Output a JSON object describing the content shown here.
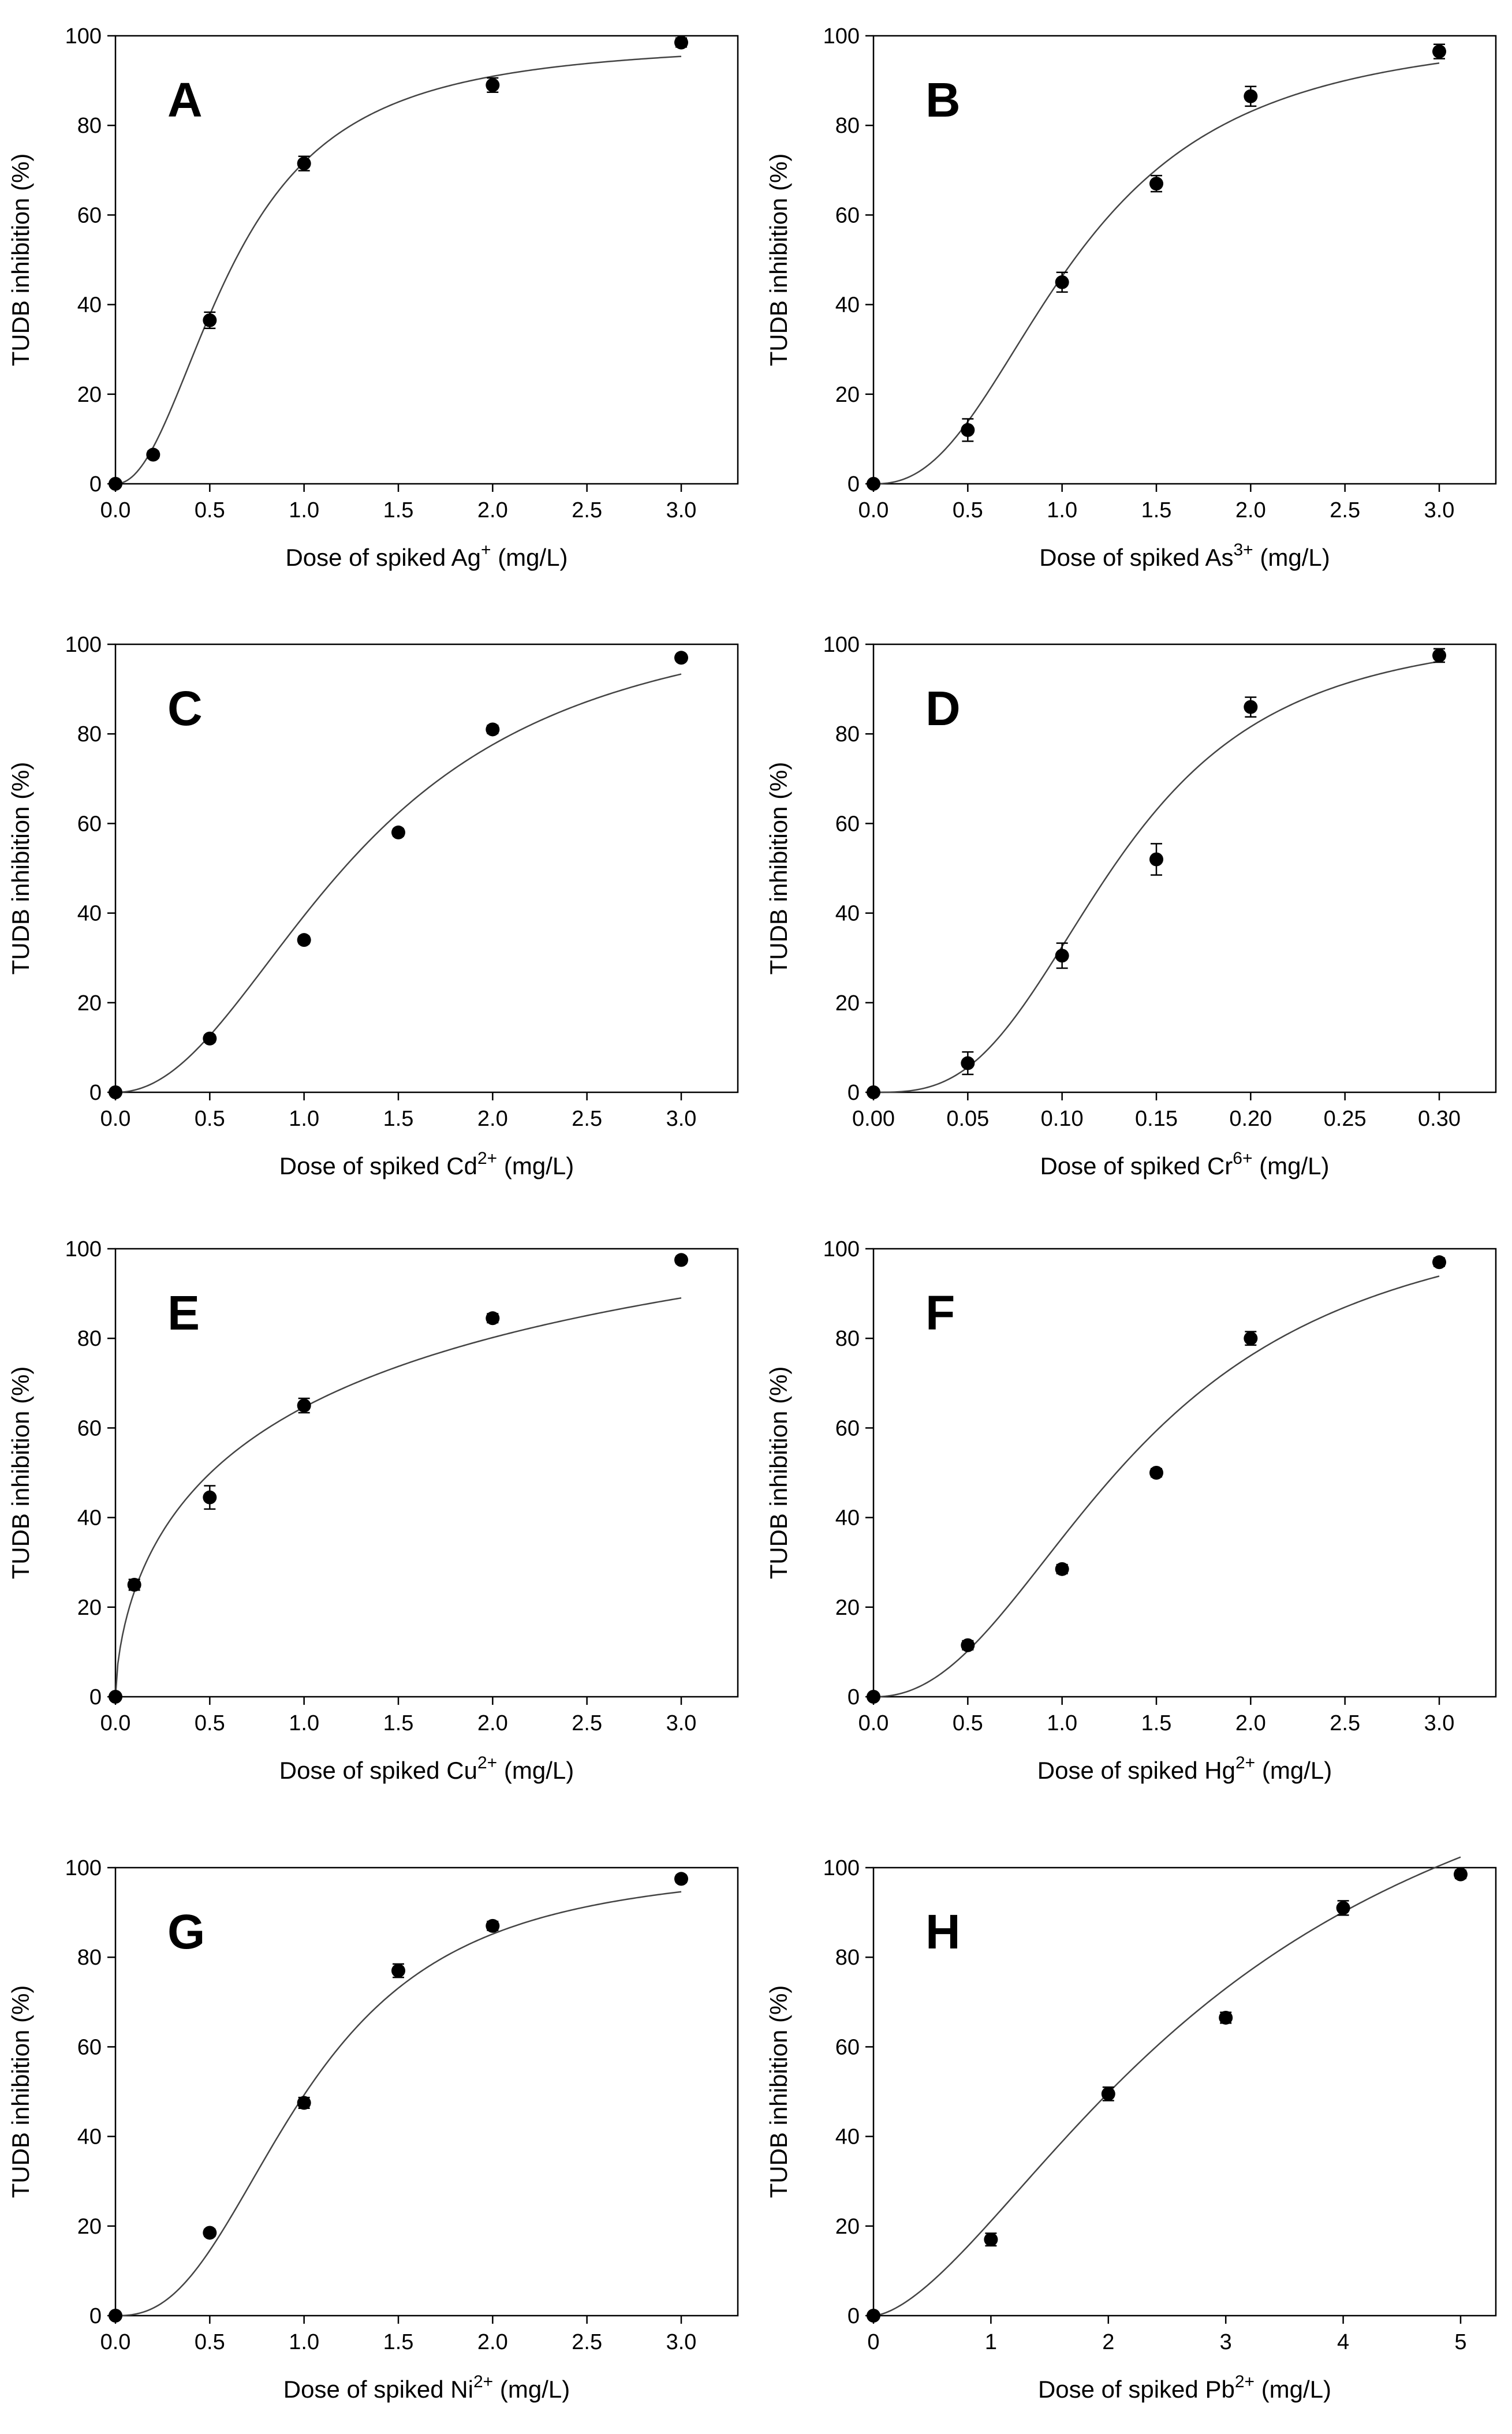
{
  "chart_data": [
    {
      "type": "scatter",
      "panel": "A",
      "ion_base": "Ag",
      "ion_charge": "+",
      "xlabel_prefix": "Dose of spiked ",
      "xlabel_suffix": " (mg/L)",
      "ylabel": "TUDB inhibition (%)",
      "xlim": [
        0,
        3.3
      ],
      "ylim": [
        0,
        100
      ],
      "xticks": [
        0,
        0.5,
        1.0,
        1.5,
        2.0,
        2.5,
        3.0
      ],
      "xtick_labels": [
        "0.0",
        "0.5",
        "1.0",
        "1.5",
        "2.0",
        "2.5",
        "3.0"
      ],
      "yticks": [
        0,
        20,
        40,
        60,
        80,
        100
      ],
      "ytick_labels": [
        "0",
        "20",
        "40",
        "60",
        "80",
        "100"
      ],
      "points": [
        {
          "x": 0,
          "y": 0,
          "err": 0
        },
        {
          "x": 0.2,
          "y": 6.5,
          "err": 0.8
        },
        {
          "x": 0.5,
          "y": 36.5,
          "err": 1.8
        },
        {
          "x": 1.0,
          "y": 71.5,
          "err": 1.6
        },
        {
          "x": 2.0,
          "y": 89,
          "err": 1.6
        },
        {
          "x": 3.0,
          "y": 98.5,
          "err": 1.0
        }
      ],
      "fit": {
        "top": 99,
        "ec50": 0.63,
        "hill": 2.1
      }
    },
    {
      "type": "scatter",
      "panel": "B",
      "ion_base": "As",
      "ion_charge": "3+",
      "xlabel_prefix": "Dose of spiked ",
      "xlabel_suffix": " (mg/L)",
      "ylabel": "TUDB inhibition (%)",
      "xlim": [
        0,
        3.3
      ],
      "ylim": [
        0,
        100
      ],
      "xticks": [
        0,
        0.5,
        1.0,
        1.5,
        2.0,
        2.5,
        3.0
      ],
      "xtick_labels": [
        "0.0",
        "0.5",
        "1.0",
        "1.5",
        "2.0",
        "2.5",
        "3.0"
      ],
      "yticks": [
        0,
        20,
        40,
        60,
        80,
        100
      ],
      "ytick_labels": [
        "0",
        "20",
        "40",
        "60",
        "80",
        "100"
      ],
      "points": [
        {
          "x": 0,
          "y": 0,
          "err": 0
        },
        {
          "x": 0.5,
          "y": 12,
          "err": 2.5
        },
        {
          "x": 1.0,
          "y": 45,
          "err": 2.2
        },
        {
          "x": 1.5,
          "y": 67,
          "err": 1.8
        },
        {
          "x": 2.0,
          "y": 86.5,
          "err": 2.2
        },
        {
          "x": 3.0,
          "y": 96.5,
          "err": 1.6
        }
      ],
      "fit": {
        "top": 102,
        "ec50": 1.08,
        "hill": 2.4
      }
    },
    {
      "type": "scatter",
      "panel": "C",
      "ion_base": "Cd",
      "ion_charge": "2+",
      "xlabel_prefix": "Dose of spiked ",
      "xlabel_suffix": " (mg/L)",
      "ylabel": "TUDB inhibition (%)",
      "xlim": [
        0,
        3.3
      ],
      "ylim": [
        0,
        100
      ],
      "xticks": [
        0,
        0.5,
        1.0,
        1.5,
        2.0,
        2.5,
        3.0
      ],
      "xtick_labels": [
        "0.0",
        "0.5",
        "1.0",
        "1.5",
        "2.0",
        "2.5",
        "3.0"
      ],
      "yticks": [
        0,
        20,
        40,
        60,
        80,
        100
      ],
      "ytick_labels": [
        "0",
        "20",
        "40",
        "60",
        "80",
        "100"
      ],
      "points": [
        {
          "x": 0,
          "y": 0,
          "err": 0
        },
        {
          "x": 0.5,
          "y": 12,
          "err": 0.8
        },
        {
          "x": 1.0,
          "y": 34,
          "err": 0.8
        },
        {
          "x": 1.5,
          "y": 58,
          "err": 0.8
        },
        {
          "x": 2.0,
          "y": 81,
          "err": 0.9
        },
        {
          "x": 3.0,
          "y": 97,
          "err": 0.7
        }
      ],
      "fit": {
        "top": 110,
        "ec50": 1.32,
        "hill": 2.1
      }
    },
    {
      "type": "scatter",
      "panel": "D",
      "ion_base": "Cr",
      "ion_charge": "6+",
      "xlabel_prefix": "Dose of spiked ",
      "xlabel_suffix": " (mg/L)",
      "ylabel": "TUDB inhibition (%)",
      "xlim": [
        0,
        0.33
      ],
      "ylim": [
        0,
        100
      ],
      "xticks": [
        0,
        0.05,
        0.1,
        0.15,
        0.2,
        0.25,
        0.3
      ],
      "xtick_labels": [
        "0.00",
        "0.05",
        "0.10",
        "0.15",
        "0.20",
        "0.25",
        "0.30"
      ],
      "yticks": [
        0,
        20,
        40,
        60,
        80,
        100
      ],
      "ytick_labels": [
        "0",
        "20",
        "40",
        "60",
        "80",
        "100"
      ],
      "points": [
        {
          "x": 0,
          "y": 0,
          "err": 0
        },
        {
          "x": 0.05,
          "y": 6.5,
          "err": 2.5
        },
        {
          "x": 0.1,
          "y": 30.5,
          "err": 2.8
        },
        {
          "x": 0.15,
          "y": 52,
          "err": 3.5
        },
        {
          "x": 0.2,
          "y": 86,
          "err": 2.2
        },
        {
          "x": 0.3,
          "y": 97.5,
          "err": 1.5
        }
      ],
      "fit": {
        "top": 104,
        "ec50": 0.13,
        "hill": 3.0
      }
    },
    {
      "type": "scatter",
      "panel": "E",
      "ion_base": "Cu",
      "ion_charge": "2+",
      "xlabel_prefix": "Dose of spiked ",
      "xlabel_suffix": " (mg/L)",
      "ylabel": "TUDB inhibition (%)",
      "xlim": [
        0,
        3.3
      ],
      "ylim": [
        0,
        100
      ],
      "xticks": [
        0,
        0.5,
        1.0,
        1.5,
        2.0,
        2.5,
        3.0
      ],
      "xtick_labels": [
        "0.0",
        "0.5",
        "1.0",
        "1.5",
        "2.0",
        "2.5",
        "3.0"
      ],
      "yticks": [
        0,
        20,
        40,
        60,
        80,
        100
      ],
      "ytick_labels": [
        "0",
        "20",
        "40",
        "60",
        "80",
        "100"
      ],
      "points": [
        {
          "x": 0,
          "y": 0,
          "err": 0
        },
        {
          "x": 0.1,
          "y": 25,
          "err": 1.2
        },
        {
          "x": 0.5,
          "y": 44.5,
          "err": 2.6
        },
        {
          "x": 1.0,
          "y": 65,
          "err": 1.6
        },
        {
          "x": 2.0,
          "y": 84.5,
          "err": 1.0
        },
        {
          "x": 3.0,
          "y": 97.5,
          "err": 0.8
        }
      ],
      "fit": {
        "top": 145,
        "ec50": 1.42,
        "hill": 0.62
      }
    },
    {
      "type": "scatter",
      "panel": "F",
      "ion_base": "Hg",
      "ion_charge": "2+",
      "xlabel_prefix": "Dose of spiked ",
      "xlabel_suffix": " (mg/L)",
      "ylabel": "TUDB inhibition (%)",
      "xlim": [
        0,
        3.3
      ],
      "ylim": [
        0,
        100
      ],
      "xticks": [
        0,
        0.5,
        1.0,
        1.5,
        2.0,
        2.5,
        3.0
      ],
      "xtick_labels": [
        "0.0",
        "0.5",
        "1.0",
        "1.5",
        "2.0",
        "2.5",
        "3.0"
      ],
      "yticks": [
        0,
        20,
        40,
        60,
        80,
        100
      ],
      "ytick_labels": [
        "0",
        "20",
        "40",
        "60",
        "80",
        "100"
      ],
      "points": [
        {
          "x": 0,
          "y": 0,
          "err": 0
        },
        {
          "x": 0.5,
          "y": 11.5,
          "err": 1.0
        },
        {
          "x": 1.0,
          "y": 28.5,
          "err": 1.0
        },
        {
          "x": 1.5,
          "y": 50,
          "err": 0.9
        },
        {
          "x": 2.0,
          "y": 80,
          "err": 1.5
        },
        {
          "x": 3.0,
          "y": 97,
          "err": 0.9
        }
      ],
      "fit": {
        "top": 112,
        "ec50": 1.42,
        "hill": 2.2
      }
    },
    {
      "type": "scatter",
      "panel": "G",
      "ion_base": "Ni",
      "ion_charge": "2+",
      "xlabel_prefix": "Dose of spiked ",
      "xlabel_suffix": " (mg/L)",
      "ylabel": "TUDB inhibition (%)",
      "xlim": [
        0,
        3.3
      ],
      "ylim": [
        0,
        100
      ],
      "xticks": [
        0,
        0.5,
        1.0,
        1.5,
        2.0,
        2.5,
        3.0
      ],
      "xtick_labels": [
        "0.0",
        "0.5",
        "1.0",
        "1.5",
        "2.0",
        "2.5",
        "3.0"
      ],
      "yticks": [
        0,
        20,
        40,
        60,
        80,
        100
      ],
      "ytick_labels": [
        "0",
        "20",
        "40",
        "60",
        "80",
        "100"
      ],
      "points": [
        {
          "x": 0,
          "y": 0,
          "err": 0
        },
        {
          "x": 0.5,
          "y": 18.5,
          "err": 0.8
        },
        {
          "x": 1.0,
          "y": 47.5,
          "err": 1.2
        },
        {
          "x": 1.5,
          "y": 77,
          "err": 1.5
        },
        {
          "x": 2.0,
          "y": 87,
          "err": 1.0
        },
        {
          "x": 3.0,
          "y": 97.5,
          "err": 0.8
        }
      ],
      "fit": {
        "top": 101,
        "ec50": 1.02,
        "hill": 2.5
      }
    },
    {
      "type": "scatter",
      "panel": "H",
      "ion_base": "Pb",
      "ion_charge": "2+",
      "xlabel_prefix": "Dose of spiked ",
      "xlabel_suffix": " (mg/L)",
      "ylabel": "TUDB inhibition (%)",
      "xlim": [
        0,
        5.3
      ],
      "ylim": [
        0,
        100
      ],
      "xticks": [
        0,
        1,
        2,
        3,
        4,
        5
      ],
      "xtick_labels": [
        "0",
        "1",
        "2",
        "3",
        "4",
        "5"
      ],
      "yticks": [
        0,
        20,
        40,
        60,
        80,
        100
      ],
      "ytick_labels": [
        "0",
        "20",
        "40",
        "60",
        "80",
        "100"
      ],
      "points": [
        {
          "x": 0,
          "y": 0,
          "err": 0
        },
        {
          "x": 1,
          "y": 17,
          "err": 1.4
        },
        {
          "x": 2,
          "y": 49.5,
          "err": 1.5
        },
        {
          "x": 3,
          "y": 66.5,
          "err": 1.2
        },
        {
          "x": 4,
          "y": 91,
          "err": 1.6
        },
        {
          "x": 5,
          "y": 98.5,
          "err": 0.9
        }
      ],
      "fit": {
        "top": 150,
        "ec50": 3.1,
        "hill": 1.6
      }
    }
  ]
}
